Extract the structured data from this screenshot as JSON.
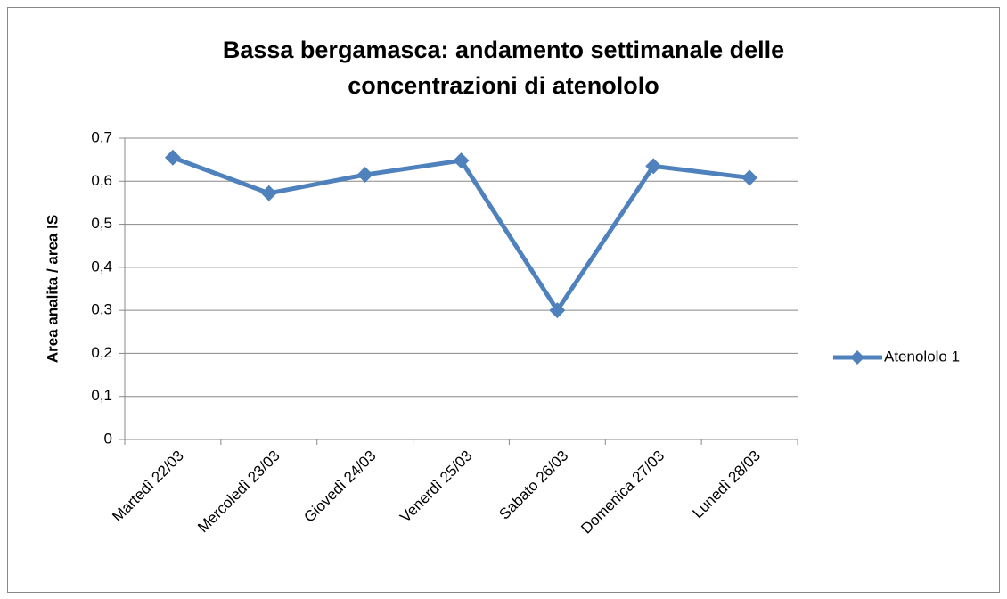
{
  "chart_data": {
    "type": "line",
    "title": [
      "Bassa bergamasca: andamento settimanale delle",
      "concentrazioni di atenololo"
    ],
    "ylabel": "Area analita / area IS",
    "categories": [
      "Martedì 22/03",
      "Mercoledì 23/03",
      "Giovedì 24/03",
      "Venerdì 25/03",
      "Sabato 26/03",
      "Domenica 27/03",
      "Lunedì 28/03"
    ],
    "series": [
      {
        "name": "Atenololo 1",
        "color": "#4f81bd",
        "values": [
          0.655,
          0.572,
          0.615,
          0.648,
          0.3,
          0.635,
          0.608
        ]
      }
    ],
    "ylim": [
      0,
      0.7
    ],
    "yticks": [
      0,
      {
        "value": 0.1,
        "label": "0,1"
      },
      {
        "value": 0.2,
        "label": "0,2"
      },
      {
        "value": 0.3,
        "label": "0,3"
      },
      {
        "value": 0.4,
        "label": "0,4"
      },
      {
        "value": 0.5,
        "label": "0,5"
      },
      {
        "value": 0.6,
        "label": "0,6"
      },
      {
        "value": 0.7,
        "label": "0,7"
      }
    ],
    "grid": true,
    "legend": "right"
  }
}
